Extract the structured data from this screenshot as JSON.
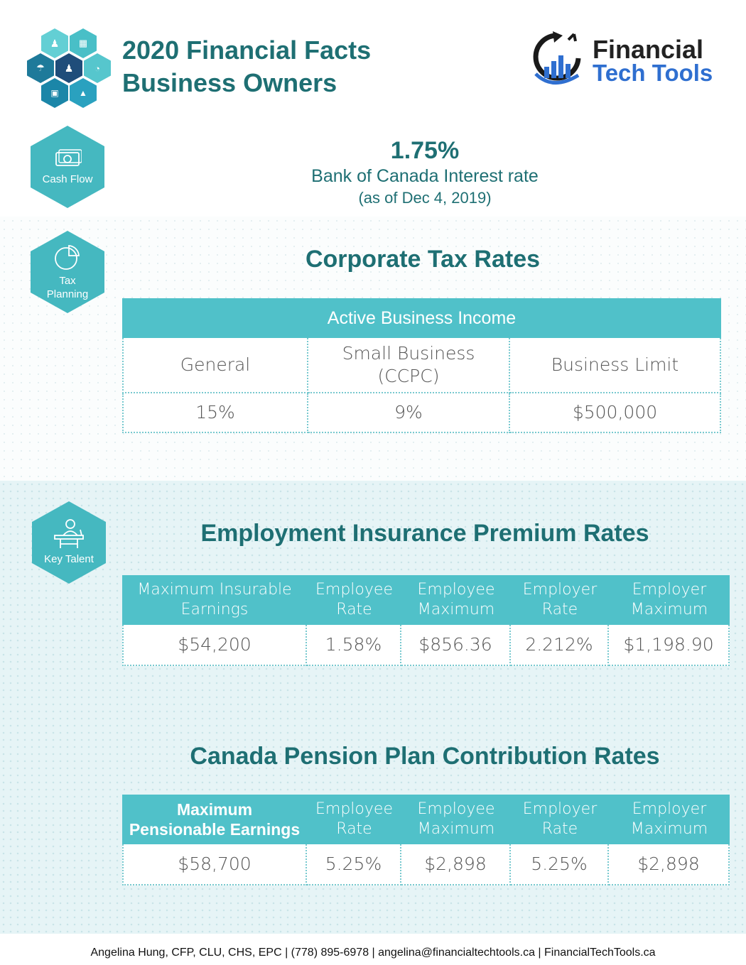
{
  "header": {
    "title_line1": "2020 Financial Facts",
    "title_line2": "Business Owners",
    "logo_line1": "Financial",
    "logo_line2": "Tech Tools"
  },
  "icons": {
    "cash_flow": "Cash Flow",
    "tax_planning_line1": "Tax",
    "tax_planning_line2": "Planning",
    "key_talent": "Key Talent"
  },
  "interest": {
    "rate": "1.75%",
    "label": "Bank of Canada Interest rate",
    "asof": "(as of Dec 4, 2019)"
  },
  "corporate": {
    "title": "Corporate Tax Rates",
    "header": "Active Business Income",
    "columns": [
      {
        "label": "General",
        "value": "15%"
      },
      {
        "label_line1": "Small Business",
        "label_line2": "(CCPC)",
        "value": "9%"
      },
      {
        "label": "Business Limit",
        "value": "$500,000"
      }
    ]
  },
  "ei": {
    "title": "Employment Insurance Premium Rates",
    "headers": [
      {
        "l1": "Maximum Insurable",
        "l2": "Earnings"
      },
      {
        "l1": "Employee",
        "l2": "Rate"
      },
      {
        "l1": "Employee",
        "l2": "Maximum"
      },
      {
        "l1": "Employer",
        "l2": "Rate"
      },
      {
        "l1": "Employer",
        "l2": "Maximum"
      }
    ],
    "values": [
      "$54,200",
      "1.58%",
      "$856.36",
      "2.212%",
      "$1,198.90"
    ]
  },
  "cpp": {
    "title": "Canada Pension Plan Contribution Rates",
    "headers": [
      {
        "l1": "Maximum",
        "l2": "Pensionable Earnings"
      },
      {
        "l1": "Employee",
        "l2": "Rate"
      },
      {
        "l1": "Employee",
        "l2": "Maximum"
      },
      {
        "l1": "Employer",
        "l2": "Rate"
      },
      {
        "l1": "Employer",
        "l2": "Maximum"
      }
    ],
    "values": [
      "$58,700",
      "5.25%",
      "$2,898",
      "5.25%",
      "$2,898"
    ]
  },
  "footer": {
    "text": "Angelina Hung, CFP, CLU, CHS, EPC | (778) 895-6978 | angelina@financialtechtools.ca | FinancialTechTools.ca"
  },
  "colors": {
    "teal_dark": "#1e6f73",
    "teal_header": "#50c1c9",
    "teal_hex": "#45b8c0",
    "navy": "#1f4d7a"
  }
}
